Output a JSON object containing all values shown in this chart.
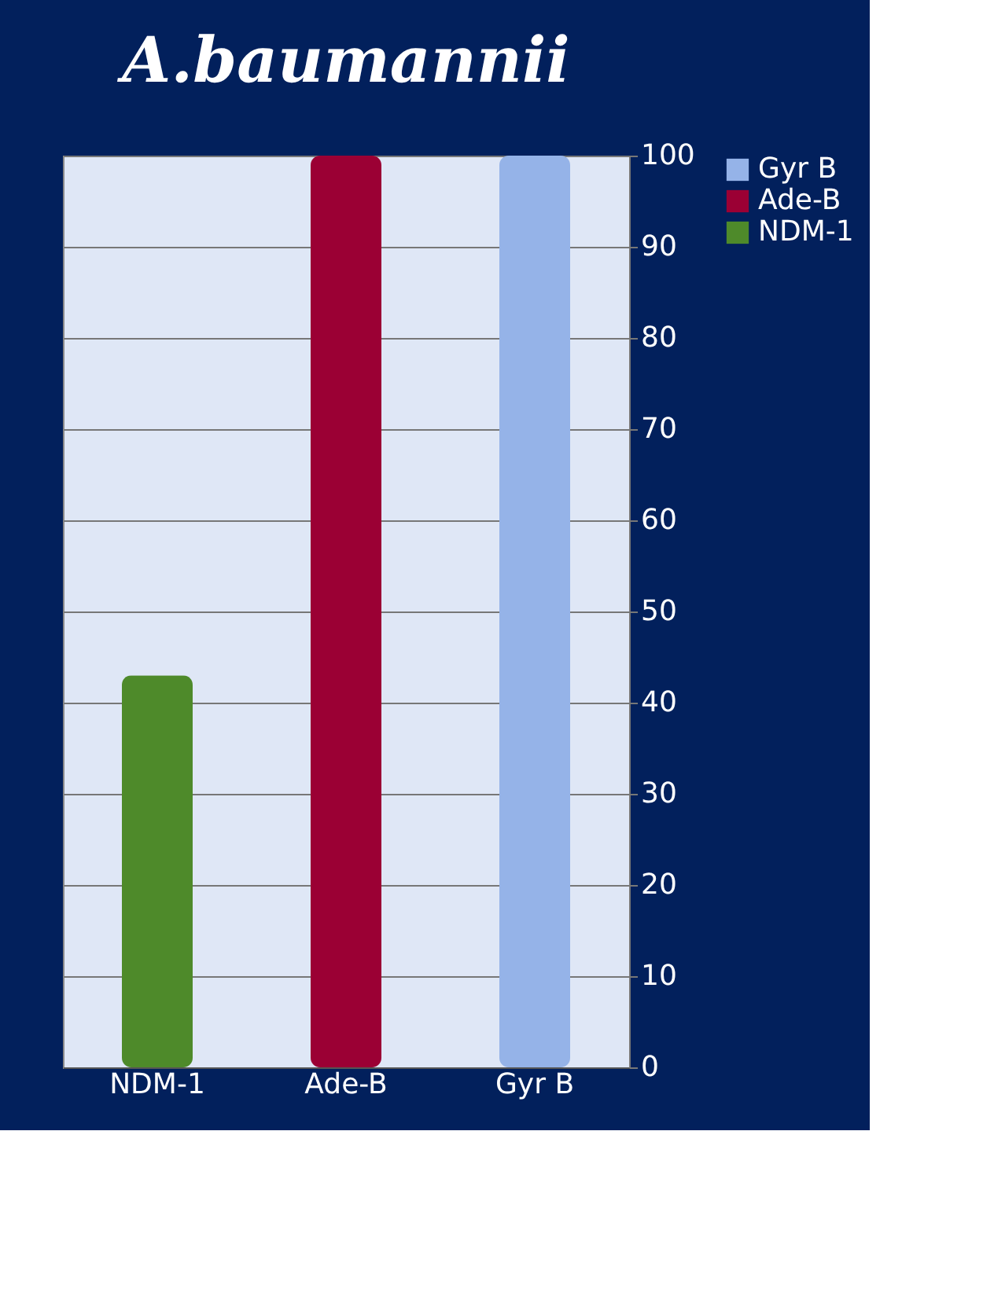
{
  "chart_data": {
    "type": "bar",
    "title": "A.baumannii",
    "categories": [
      "NDM-1",
      "Ade-B",
      "Gyr B"
    ],
    "series": [
      {
        "name": "Gyr B",
        "color": "#95b3e8",
        "values": [
          null,
          null,
          100
        ]
      },
      {
        "name": "Ade-B",
        "color": "#9b0034",
        "values": [
          null,
          100,
          null
        ]
      },
      {
        "name": "NDM-1",
        "color": "#4e8a2a",
        "values": [
          43,
          null,
          null
        ]
      }
    ],
    "ylim": [
      0,
      100
    ],
    "yticks": [
      0,
      10,
      20,
      30,
      40,
      50,
      60,
      70,
      80,
      90,
      100
    ],
    "grid": "y",
    "legend": "right"
  }
}
